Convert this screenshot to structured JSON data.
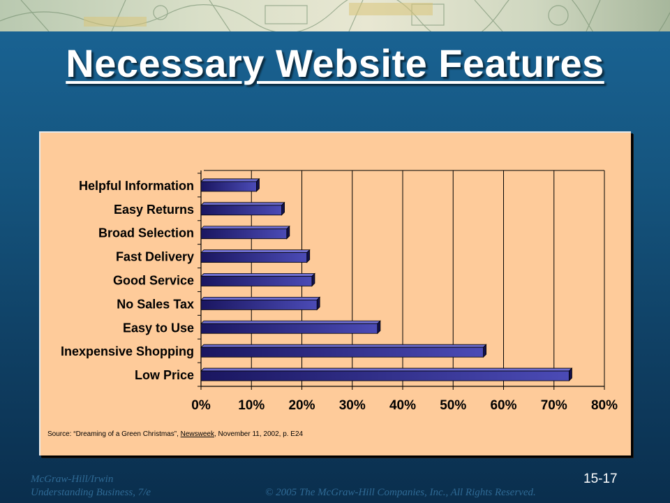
{
  "slide": {
    "title": "Necessary Website Features",
    "slide_number": "15-17",
    "footer_publisher": "McGraw-Hill/Irwin",
    "footer_book": "Understanding Business, 7/e",
    "footer_copyright": "© 2005 The McGraw-Hill Companies, Inc., All Rights Reserved.",
    "source_prefix": "Source: “Dreaming of a Green Christmas”, ",
    "source_publication": "Newsweek",
    "source_suffix": ", November 11, 2002, p. E24"
  },
  "colors": {
    "background": "#15557f",
    "panel": "#fecb9a",
    "bar_dark": "#1a1660",
    "bar_light": "#4b4bb6",
    "title": "#ffffff",
    "footer": "#2f6a95"
  },
  "chart_data": {
    "type": "bar",
    "orientation": "horizontal",
    "categories": [
      "Helpful Information",
      "Easy Returns",
      "Broad Selection",
      "Fast Delivery",
      "Good Service",
      "No Sales Tax",
      "Easy to Use",
      "Inexpensive Shopping",
      "Low Price"
    ],
    "values": [
      11,
      16,
      17,
      21,
      22,
      23,
      35,
      56,
      73
    ],
    "xlim": [
      0,
      80
    ],
    "x_ticks": [
      "0%",
      "10%",
      "20%",
      "30%",
      "40%",
      "50%",
      "60%",
      "70%",
      "80%"
    ],
    "grid": "vertical",
    "bar_style": "3d"
  }
}
